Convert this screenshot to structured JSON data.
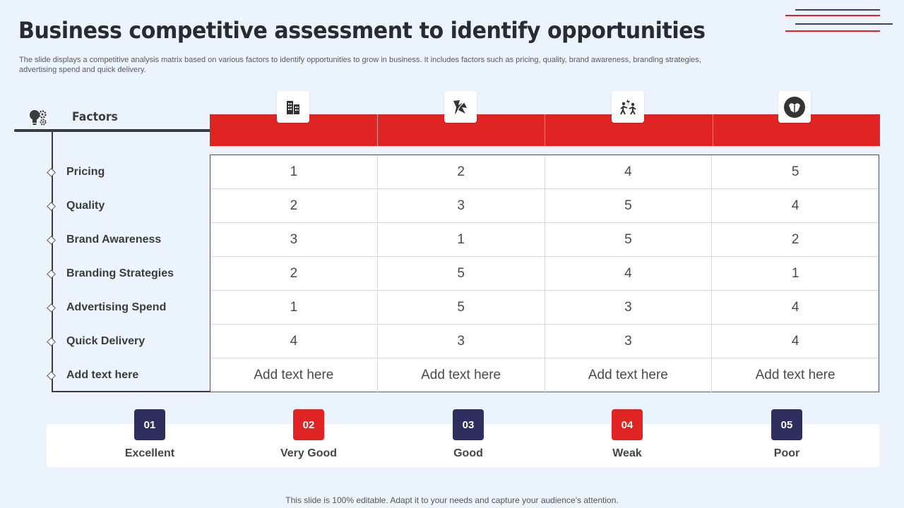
{
  "title": "Business competitive assessment to identify opportunities",
  "subtitle": "The slide displays a competitive analysis matrix based on various factors to identify opportunities to grow in business. It includes factors such as pricing, quality, brand awareness, branding strategies, advertising spend and quick delivery.",
  "factors_heading": "Factors",
  "factors": [
    "Pricing",
    "Quality",
    "Brand Awareness",
    "Branding Strategies",
    "Advertising Spend",
    "Quick Delivery",
    "Add text here"
  ],
  "competitor_icons": [
    "buildings-icon",
    "broken-glass-icon",
    "people-fighting-icon",
    "handshake-circle-icon"
  ],
  "rows": [
    [
      "1",
      "2",
      "4",
      "5"
    ],
    [
      "2",
      "3",
      "5",
      "4"
    ],
    [
      "3",
      "1",
      "5",
      "2"
    ],
    [
      "2",
      "5",
      "4",
      "1"
    ],
    [
      "1",
      "5",
      "3",
      "4"
    ],
    [
      "4",
      "3",
      "3",
      "4"
    ],
    [
      "Add text here",
      "Add text here",
      "Add text here",
      "Add text here"
    ]
  ],
  "legend": [
    {
      "number": "01",
      "label": "Excellent",
      "color": "#2e2f5e"
    },
    {
      "number": "02",
      "label": "Very Good",
      "color": "#e02424"
    },
    {
      "number": "03",
      "label": "Good",
      "color": "#2e2f5e"
    },
    {
      "number": "04",
      "label": "Weak",
      "color": "#e02424"
    },
    {
      "number": "05",
      "label": "Poor",
      "color": "#2e2f5e"
    }
  ],
  "footer": "This slide is 100% editable. Adapt it to your needs and capture your audience’s attention.",
  "colors": {
    "accent_red": "#e02424",
    "navy": "#2e2f5e",
    "background": "#ebf4fc"
  }
}
